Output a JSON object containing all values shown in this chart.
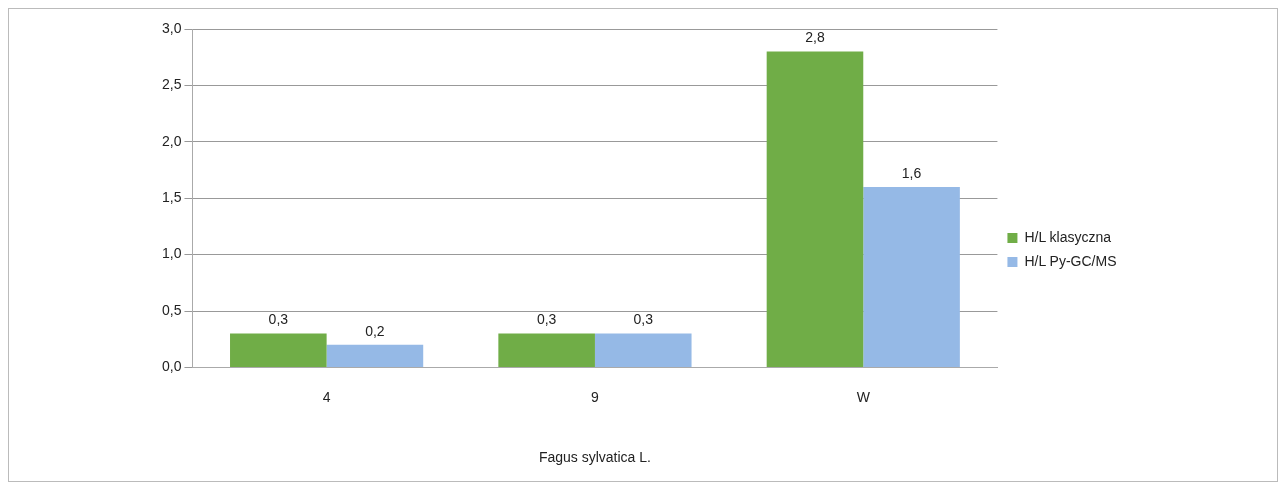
{
  "chart_data": {
    "type": "bar",
    "xlabel": "Fagus sylvatica L.",
    "categories": [
      "4",
      "9",
      "W"
    ],
    "series": [
      {
        "name": "H/L klasyczna",
        "color": "#70ad47",
        "values": [
          0.3,
          0.3,
          2.8
        ],
        "value_labels": [
          "0,3",
          "0,3",
          "2,8"
        ]
      },
      {
        "name": "H/L Py-GC/MS",
        "color": "#95b9e6",
        "values": [
          0.2,
          0.3,
          1.6
        ],
        "value_labels": [
          "0,2",
          "0,3",
          "1,6"
        ]
      }
    ],
    "ylim": [
      0,
      3
    ],
    "yticks": [
      {
        "value": 0,
        "label": "0,0"
      },
      {
        "value": 0.5,
        "label": "0,5"
      },
      {
        "value": 1,
        "label": "1,0"
      },
      {
        "value": 1.5,
        "label": "1,5"
      },
      {
        "value": 2,
        "label": "2,0"
      },
      {
        "value": 2.5,
        "label": "2,5"
      },
      {
        "value": 3,
        "label": "3,0"
      }
    ],
    "grid": "y",
    "legend": "right"
  }
}
